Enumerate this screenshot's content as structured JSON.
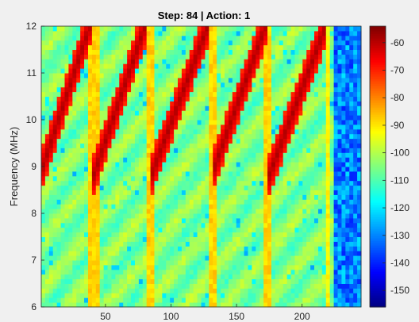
{
  "chart_data": {
    "type": "heatmap",
    "title": "Step: 84 | Action: 1",
    "xlabel": "",
    "ylabel": "Frequency (MHz)",
    "xlim": [
      1,
      245
    ],
    "ylim": [
      6,
      12
    ],
    "x_ticks": [
      50,
      100,
      150,
      200
    ],
    "y_ticks": [
      6,
      7,
      8,
      9,
      10,
      11,
      12
    ],
    "colorbar": {
      "colormap": "jet",
      "clim": [
        -156,
        -54
      ],
      "ticks": [
        -60,
        -70,
        -80,
        -90,
        -100,
        -110,
        -120,
        -130,
        -140,
        -150
      ]
    },
    "grid": false,
    "background_dB": -105,
    "noise_floor_dB": -130,
    "noise_region_x_start": 223,
    "chirps": [
      {
        "x_start": 1,
        "x_end": 38,
        "f_start": 8.9,
        "f_end": 12.0,
        "level_dB": -58
      },
      {
        "x_start": 42,
        "x_end": 80,
        "f_start": 8.9,
        "f_end": 12.0,
        "level_dB": -58
      },
      {
        "x_start": 86,
        "x_end": 128,
        "f_start": 8.9,
        "f_end": 12.0,
        "level_dB": -58
      },
      {
        "x_start": 132,
        "x_end": 172,
        "f_start": 8.9,
        "f_end": 12.0,
        "level_dB": -58
      },
      {
        "x_start": 176,
        "x_end": 218,
        "f_start": 8.9,
        "f_end": 12.0,
        "level_dB": -58
      }
    ],
    "wideband_bursts": [
      {
        "x_start": 38,
        "x_end": 46,
        "level_dB": -88
      },
      {
        "x_start": 80,
        "x_end": 88,
        "level_dB": -88
      },
      {
        "x_start": 128,
        "x_end": 134,
        "level_dB": -88
      },
      {
        "x_start": 172,
        "x_end": 178,
        "level_dB": -88
      },
      {
        "x_start": 218,
        "x_end": 222,
        "level_dB": -92
      }
    ]
  }
}
